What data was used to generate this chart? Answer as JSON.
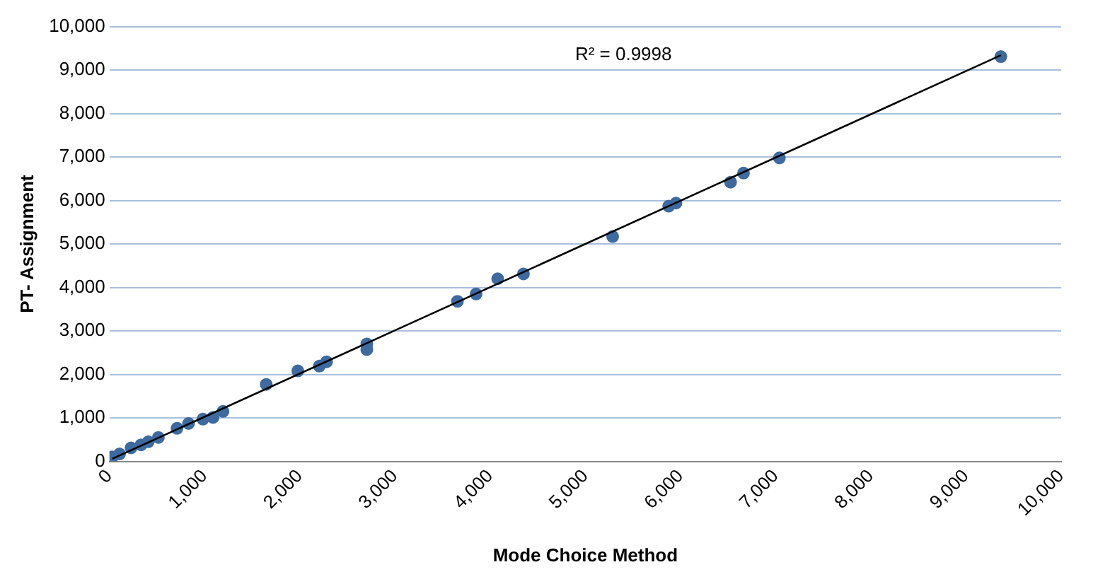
{
  "chart_data": {
    "type": "scatter",
    "xlabel": "Mode Choice Method",
    "ylabel": "PT- Assignment",
    "annotations": [
      "R² = 0.9998"
    ],
    "xlim": [
      0,
      10000
    ],
    "ylim": [
      0,
      10000
    ],
    "xticks": [
      {
        "value": 0,
        "label": "0"
      },
      {
        "value": 1000,
        "label": "1,000"
      },
      {
        "value": 2000,
        "label": "2,000"
      },
      {
        "value": 3000,
        "label": "3,000"
      },
      {
        "value": 4000,
        "label": "4,000"
      },
      {
        "value": 5000,
        "label": "5,000"
      },
      {
        "value": 6000,
        "label": "6,000"
      },
      {
        "value": 7000,
        "label": "7,000"
      },
      {
        "value": 8000,
        "label": "8,000"
      },
      {
        "value": 9000,
        "label": "9,000"
      },
      {
        "value": 10000,
        "label": "10,000"
      }
    ],
    "yticks": [
      {
        "value": 0,
        "label": "0"
      },
      {
        "value": 1000,
        "label": "1,000"
      },
      {
        "value": 2000,
        "label": "2,000"
      },
      {
        "value": 3000,
        "label": "3,000"
      },
      {
        "value": 4000,
        "label": "4,000"
      },
      {
        "value": 5000,
        "label": "5,000"
      },
      {
        "value": 6000,
        "label": "6,000"
      },
      {
        "value": 7000,
        "label": "7,000"
      },
      {
        "value": 8000,
        "label": "8,000"
      },
      {
        "value": 9000,
        "label": "9,000"
      },
      {
        "value": 10000,
        "label": "10,000"
      }
    ],
    "grid": "y",
    "legend": false,
    "marker": "circle",
    "series": [
      {
        "color": "#3e6aa0",
        "x": [
          30,
          106,
          227,
          332,
          408,
          514,
          710,
          831,
          982,
          1088,
          1193,
          1647,
          1979,
          2205,
          2281,
          2704,
          2704,
          3656,
          3852,
          4079,
          4350,
          5287,
          5876,
          5952,
          6526,
          6662,
          7039,
          9366
        ],
        "values": [
          100,
          170,
          310,
          380,
          450,
          550,
          760,
          870,
          970,
          1010,
          1150,
          1770,
          2080,
          2190,
          2290,
          2570,
          2700,
          3680,
          3850,
          4200,
          4310,
          5170,
          5870,
          5940,
          6420,
          6630,
          6980,
          9310
        ]
      },
      {
        "type": "line",
        "color": "#000000",
        "marker": "none",
        "x": [
          30,
          9366
        ],
        "values": [
          60,
          9340
        ]
      }
    ]
  }
}
